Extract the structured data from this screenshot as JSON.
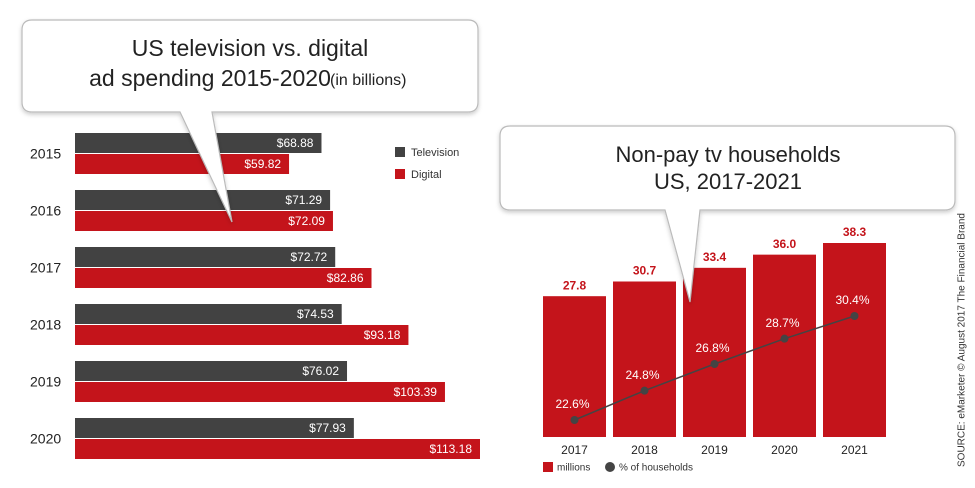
{
  "chart_data": [
    {
      "type": "hbar",
      "title": [
        "US television vs. digital",
        "ad spending 2015-2020"
      ],
      "unit_note": "(in billions)",
      "categories": [
        "2015",
        "2016",
        "2017",
        "2018",
        "2019",
        "2020"
      ],
      "series": [
        {
          "name": "Television",
          "color": "#424242",
          "values": [
            68.88,
            71.29,
            72.72,
            74.53,
            76.02,
            77.93
          ],
          "value_labels": [
            "$68.88",
            "$71.29",
            "$72.72",
            "$74.53",
            "$76.02",
            "$77.93"
          ]
        },
        {
          "name": "Digital",
          "color": "#c4141b",
          "values": [
            59.82,
            72.09,
            82.86,
            93.18,
            103.39,
            113.18
          ],
          "value_labels": [
            "$59.82",
            "$72.09",
            "$82.86",
            "$93.18",
            "$103.39",
            "$113.18"
          ]
        }
      ]
    },
    {
      "type": "bar",
      "title": [
        "Non-pay tv households",
        "US, 2017-2021"
      ],
      "categories": [
        "2017",
        "2018",
        "2019",
        "2020",
        "2021"
      ],
      "series": [
        {
          "name": "millions",
          "color": "#c4141b",
          "values": [
            27.8,
            30.7,
            33.4,
            36,
            38.3
          ],
          "value_labels": [
            "27.8",
            "30.7",
            "33.4",
            "36.0",
            "38.3"
          ]
        },
        {
          "name": "% of households",
          "type": "line",
          "axis": "y2",
          "color": "#444444",
          "values": [
            22.6,
            24.8,
            26.8,
            28.7,
            30.4
          ],
          "value_labels": [
            "22.6%",
            "24.8%",
            "26.8%",
            "28.7%",
            "30.4%"
          ]
        }
      ]
    }
  ],
  "source": "SOURCE: eMarketer © August 2017 The Financial Brand"
}
